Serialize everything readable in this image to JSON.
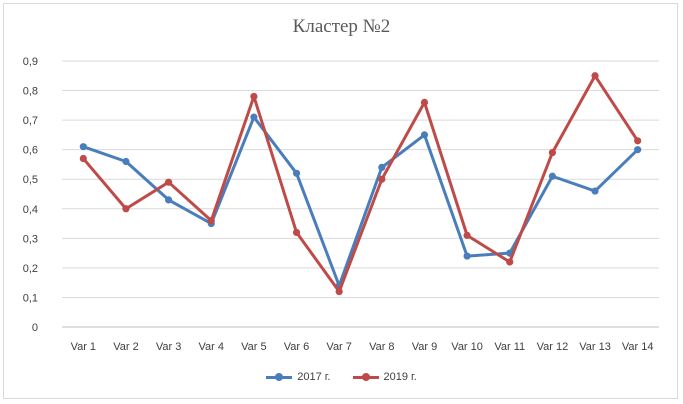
{
  "chart_data": {
    "type": "line",
    "title": "Кластер №2",
    "categories": [
      "Var 1",
      "Var 2",
      "Var 3",
      "Var 4",
      "Var 5",
      "Var 6",
      "Var 7",
      "Var 8",
      "Var 9",
      "Var 10",
      "Var 11",
      "Var 12",
      "Var 13",
      "Var 14"
    ],
    "series": [
      {
        "name": "2017 г.",
        "color": "#4a7ebb",
        "values": [
          0.61,
          0.56,
          0.43,
          0.35,
          0.71,
          0.52,
          0.14,
          0.54,
          0.65,
          0.24,
          0.25,
          0.51,
          0.46,
          0.6
        ]
      },
      {
        "name": "2019 г.",
        "color": "#be4b48",
        "values": [
          0.57,
          0.4,
          0.49,
          0.36,
          0.78,
          0.32,
          0.12,
          0.5,
          0.76,
          0.31,
          0.22,
          0.59,
          0.85,
          0.63
        ]
      }
    ],
    "y_ticks": [
      "0",
      "0,1",
      "0,2",
      "0,3",
      "0,4",
      "0,5",
      "0,6",
      "0,7",
      "0,8",
      "0,9"
    ],
    "ylim": [
      0,
      0.9
    ],
    "grid": true,
    "legend_position": "bottom"
  }
}
